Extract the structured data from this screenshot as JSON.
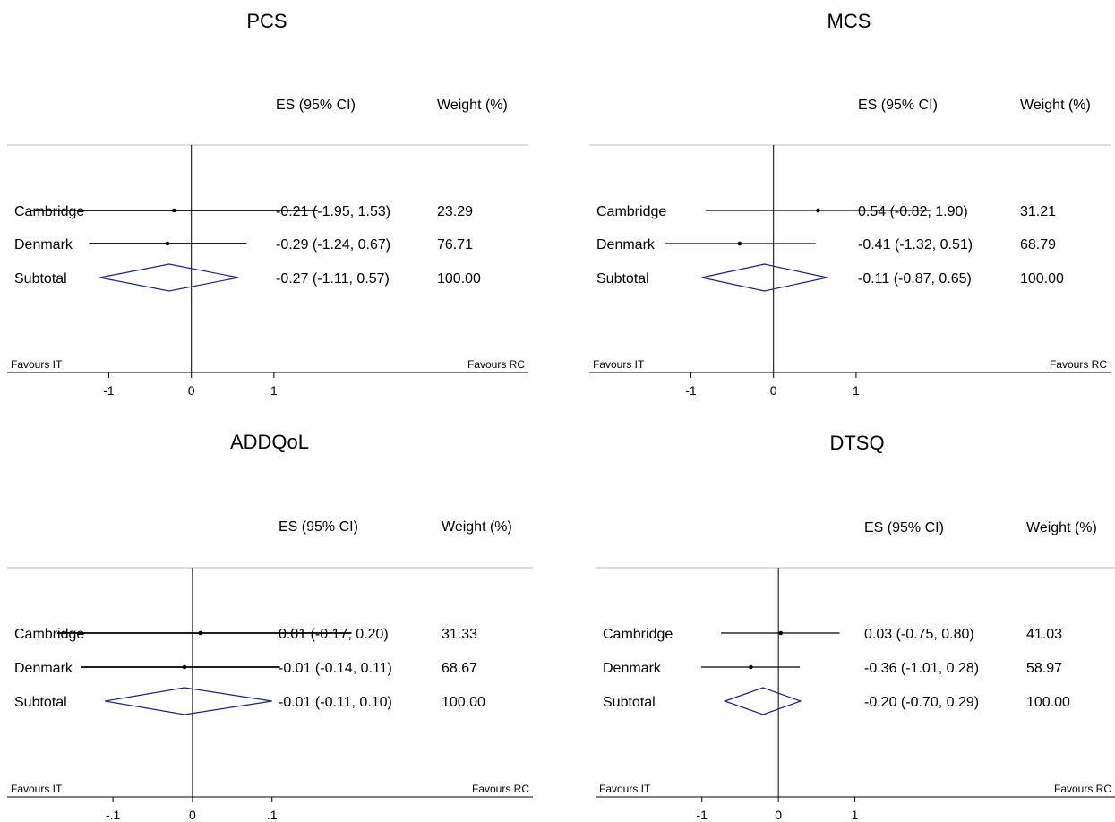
{
  "chart_data": [
    {
      "type": "forest",
      "title": "PCS",
      "columns": {
        "es": "ES (95% CI)",
        "weight": "Weight (%)"
      },
      "favours_left": "Favours IT",
      "favours_right": "Favours RC",
      "xticks": [
        "-1",
        "0",
        "1"
      ],
      "xlim": [
        -2.23,
        4.08
      ],
      "rows": [
        {
          "label": "Cambridge",
          "es": -0.21,
          "lo": -1.95,
          "hi": 1.53,
          "es_text": "-0.21 (-1.95, 1.53)",
          "weight_text": "23.29",
          "kind": "study"
        },
        {
          "label": "Denmark",
          "es": -0.29,
          "lo": -1.24,
          "hi": 0.67,
          "es_text": "-0.29 (-1.24, 0.67)",
          "weight_text": "76.71",
          "kind": "study"
        },
        {
          "label": "Subtotal",
          "es": -0.27,
          "lo": -1.11,
          "hi": 0.57,
          "es_text": "-0.27 (-1.11, 0.57)",
          "weight_text": "100.00",
          "kind": "subtotal"
        }
      ]
    },
    {
      "type": "forest",
      "title": "MCS",
      "columns": {
        "es": "ES (95% CI)",
        "weight": "Weight (%)"
      },
      "favours_left": "Favours IT",
      "favours_right": "Favours RC",
      "xticks": [
        "-1",
        "0",
        "1"
      ],
      "xlim": [
        -2.23,
        4.08
      ],
      "rows": [
        {
          "label": "Cambridge",
          "es": 0.54,
          "lo": -0.82,
          "hi": 1.9,
          "es_text": "0.54 (-0.82, 1.90)",
          "weight_text": "31.21",
          "kind": "study"
        },
        {
          "label": "Denmark",
          "es": -0.41,
          "lo": -1.32,
          "hi": 0.51,
          "es_text": "-0.41 (-1.32, 0.51)",
          "weight_text": "68.79",
          "kind": "study"
        },
        {
          "label": "Subtotal",
          "es": -0.11,
          "lo": -0.87,
          "hi": 0.65,
          "es_text": "-0.11 (-0.87, 0.65)",
          "weight_text": "100.00",
          "kind": "subtotal"
        }
      ]
    },
    {
      "type": "forest",
      "title": "ADDQoL",
      "columns": {
        "es": "ES (95% CI)",
        "weight": "Weight (%)"
      },
      "favours_left": "Favours IT",
      "favours_right": "Favours RC",
      "xticks": [
        "-.1",
        "0",
        ".1"
      ],
      "xlim": [
        -0.233,
        0.428
      ],
      "rows": [
        {
          "label": "Cambridge",
          "es": 0.01,
          "lo": -0.17,
          "hi": 0.2,
          "es_text": "0.01 (-0.17, 0.20)",
          "weight_text": "31.33",
          "kind": "study"
        },
        {
          "label": "Denmark",
          "es": -0.01,
          "lo": -0.14,
          "hi": 0.11,
          "es_text": "-0.01 (-0.14, 0.11)",
          "weight_text": "68.67",
          "kind": "study"
        },
        {
          "label": "Subtotal",
          "es": -0.01,
          "lo": -0.11,
          "hi": 0.1,
          "es_text": "-0.01 (-0.11, 0.10)",
          "weight_text": "100.00",
          "kind": "subtotal"
        }
      ]
    },
    {
      "type": "forest",
      "title": "DTSQ",
      "columns": {
        "es": "ES (95% CI)",
        "weight": "Weight (%)"
      },
      "favours_left": "Favours IT",
      "favours_right": "Favours RC",
      "xticks": [
        "-1",
        "0",
        "1"
      ],
      "xlim": [
        -2.39,
        4.4
      ],
      "rows": [
        {
          "label": "Cambridge",
          "es": 0.03,
          "lo": -0.75,
          "hi": 0.8,
          "es_text": "0.03 (-0.75, 0.80)",
          "weight_text": "41.03",
          "kind": "study"
        },
        {
          "label": "Denmark",
          "es": -0.36,
          "lo": -1.01,
          "hi": 0.28,
          "es_text": "-0.36 (-1.01, 0.28)",
          "weight_text": "58.97",
          "kind": "study"
        },
        {
          "label": "Subtotal",
          "es": -0.2,
          "lo": -0.7,
          "hi": 0.29,
          "es_text": "-0.20 (-0.70, 0.29)",
          "weight_text": "100.00",
          "kind": "subtotal"
        }
      ]
    }
  ],
  "colors": {
    "line": "#000000",
    "diamond": "#1a237e",
    "rule": "#bbbbbb"
  }
}
